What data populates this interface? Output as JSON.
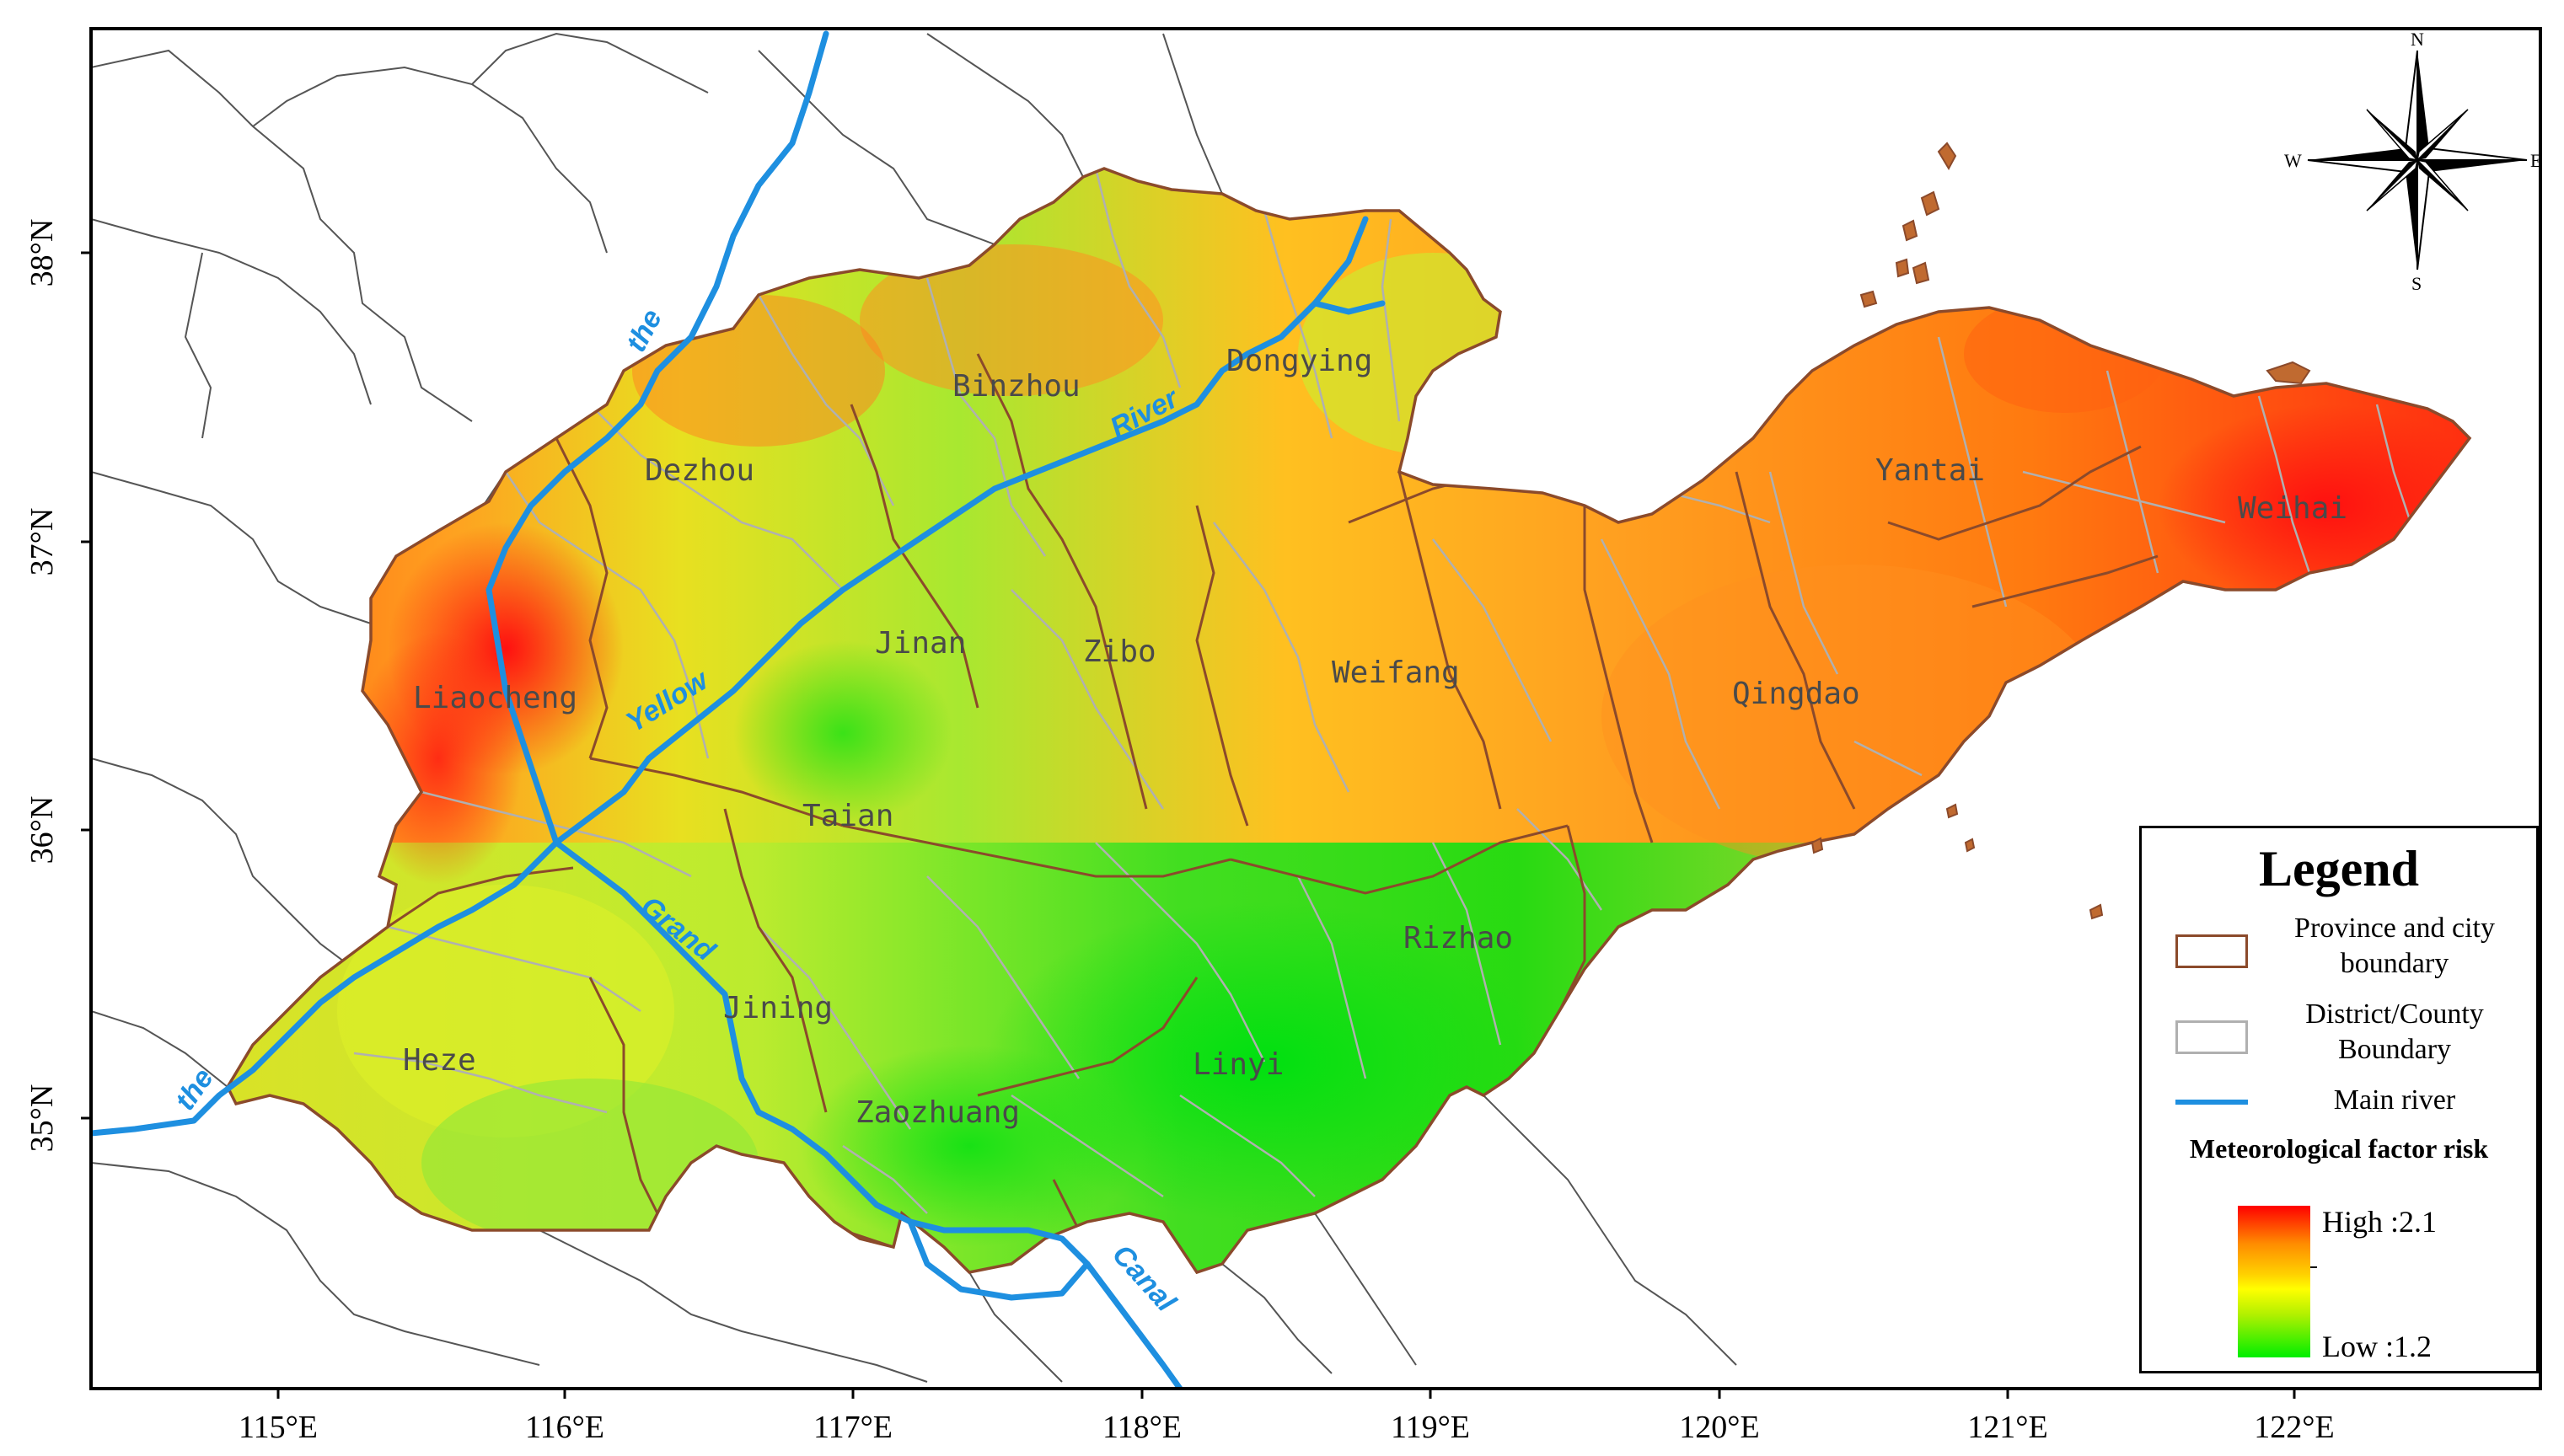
{
  "map": {
    "lat_ticks": [
      "38°N",
      "37°N",
      "36°N",
      "35°N"
    ],
    "lon_ticks": [
      "115°E",
      "116°E",
      "117°E",
      "118°E",
      "119°E",
      "120°E",
      "121°E",
      "122°E"
    ],
    "cities": [
      "Binzhou",
      "Dongying",
      "Dezhou",
      "Yantai",
      "Weihai",
      "Jinan",
      "Zibo",
      "Weifang",
      "Liaocheng",
      "Qingdao",
      "Taian",
      "Rizhao",
      "Jining",
      "Heze",
      "Linyi",
      "Zaozhuang"
    ],
    "river_labels": [
      "the",
      "River",
      "Yellow",
      "Grand",
      "the",
      "Canal"
    ],
    "compass": {
      "north": "N",
      "south": "S",
      "east": "E",
      "west": "W"
    },
    "colors": {
      "high": "#ff0000",
      "mid": "#ffff00",
      "low": "#00ee00",
      "river": "#1e8fe0",
      "province_boundary": "#8b4a2b",
      "district_boundary": "#b0b0b0"
    }
  },
  "legend": {
    "title": "Legend",
    "items": [
      {
        "label": "Province and city boundary"
      },
      {
        "label": "District/County Boundary"
      },
      {
        "label": "Main river"
      }
    ],
    "risk_title": "Meteorological factor risk",
    "high_label": "High :2.1",
    "low_label": "Low :1.2"
  }
}
